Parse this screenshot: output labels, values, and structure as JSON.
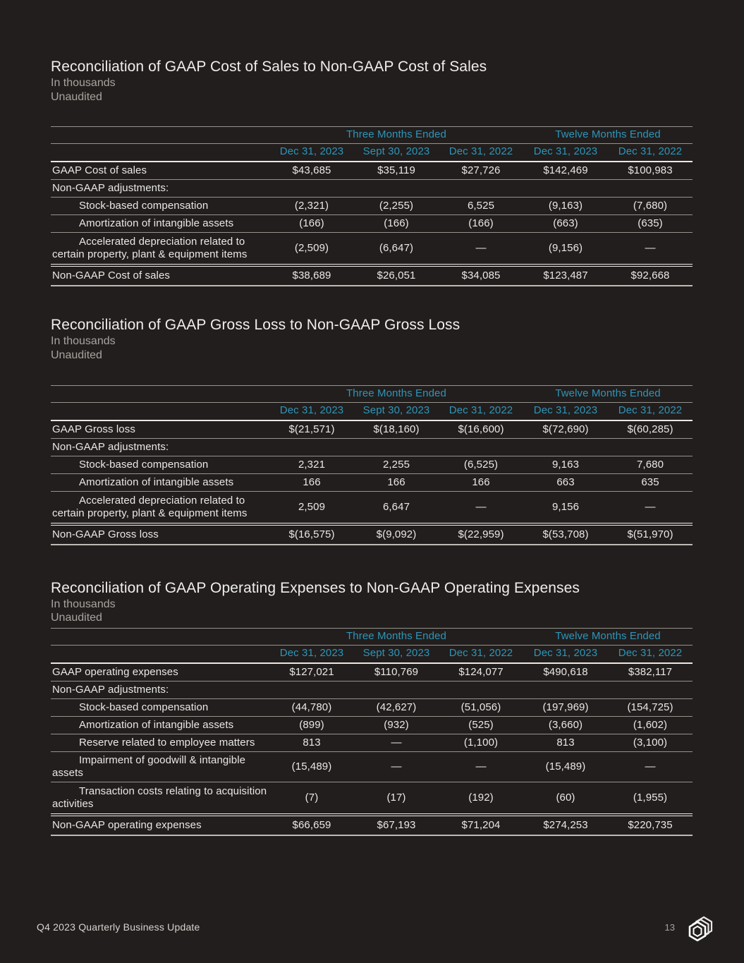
{
  "page": {
    "background_color": "#211e1d",
    "accent_color": "#2e95b9",
    "text_color": "#eae8e5"
  },
  "sections": [
    {
      "title": "Reconciliation of GAAP Cost of Sales to Non-GAAP Cost of Sales",
      "subtitle_units": "In thousands",
      "subtitle_audit": "Unaudited",
      "table": {
        "column_groups": [
          {
            "label": "Three Months Ended",
            "span": 3
          },
          {
            "label": "Twelve Months Ended",
            "span": 2
          }
        ],
        "columns": [
          "Dec 31, 2023",
          "Sept 30, 2023",
          "Dec 31, 2022",
          "Dec 31, 2023",
          "Dec 31, 2022"
        ],
        "rows": [
          {
            "label": "GAAP Cost of sales",
            "type": "data",
            "indent": false,
            "values": [
              "$43,685",
              "$35,119",
              "$27,726",
              "$142,469",
              "$100,983"
            ]
          },
          {
            "label": "Non-GAAP adjustments:",
            "type": "section",
            "indent": false,
            "values": []
          },
          {
            "label": "Stock-based compensation",
            "type": "data",
            "indent": true,
            "values": [
              "(2,321)",
              "(2,255)",
              "6,525",
              "(9,163)",
              "(7,680)"
            ]
          },
          {
            "label": "Amortization of intangible assets",
            "type": "data",
            "indent": true,
            "values": [
              "(166)",
              "(166)",
              "(166)",
              "(663)",
              "(635)"
            ]
          },
          {
            "label": "Accelerated depreciation related to certain property, plant & equipment items",
            "type": "data",
            "indent": true,
            "values": [
              "(2,509)",
              "(6,647)",
              "—",
              "(9,156)",
              "—"
            ]
          },
          {
            "label": "Non-GAAP Cost of sales",
            "type": "total",
            "indent": false,
            "values": [
              "$38,689",
              "$26,051",
              "$34,085",
              "$123,487",
              "$92,668"
            ]
          }
        ]
      }
    },
    {
      "title": "Reconciliation of GAAP Gross Loss to Non-GAAP Gross Loss",
      "subtitle_units": "In thousands",
      "subtitle_audit": "Unaudited",
      "table": {
        "column_groups": [
          {
            "label": "Three Months Ended",
            "span": 3
          },
          {
            "label": "Twelve Months Ended",
            "span": 2
          }
        ],
        "columns": [
          "Dec 31, 2023",
          "Sept 30, 2023",
          "Dec 31, 2022",
          "Dec 31, 2023",
          "Dec 31, 2022"
        ],
        "rows": [
          {
            "label": "GAAP Gross loss",
            "type": "data",
            "indent": false,
            "values": [
              "$(21,571)",
              "$(18,160)",
              "$(16,600)",
              "$(72,690)",
              "$(60,285)"
            ]
          },
          {
            "label": "Non-GAAP adjustments:",
            "type": "section",
            "indent": false,
            "values": []
          },
          {
            "label": "Stock-based compensation",
            "type": "data",
            "indent": true,
            "values": [
              "2,321",
              "2,255",
              "(6,525)",
              "9,163",
              "7,680"
            ]
          },
          {
            "label": "Amortization of intangible assets",
            "type": "data",
            "indent": true,
            "values": [
              "166",
              "166",
              "166",
              "663",
              "635"
            ]
          },
          {
            "label": "Accelerated depreciation related to certain property, plant & equipment items",
            "type": "data",
            "indent": true,
            "values": [
              "2,509",
              "6,647",
              "—",
              "9,156",
              "—"
            ]
          },
          {
            "label": "Non-GAAP Gross loss",
            "type": "total",
            "indent": false,
            "values": [
              "$(16,575)",
              "$(9,092)",
              "$(22,959)",
              "$(53,708)",
              "$(51,970)"
            ]
          }
        ]
      }
    },
    {
      "title": "Reconciliation of GAAP Operating Expenses to Non-GAAP Operating Expenses",
      "subtitle_units": "In thousands",
      "subtitle_audit": "Unaudited",
      "table": {
        "column_groups": [
          {
            "label": "Three Months Ended",
            "span": 3
          },
          {
            "label": "Twelve Months Ended",
            "span": 2
          }
        ],
        "columns": [
          "Dec 31, 2023",
          "Sept 30, 2023",
          "Dec 31, 2022",
          "Dec 31, 2023",
          "Dec 31, 2022"
        ],
        "rows": [
          {
            "label": "GAAP operating expenses",
            "type": "data",
            "indent": false,
            "values": [
              "$127,021",
              "$110,769",
              "$124,077",
              "$490,618",
              "$382,117"
            ]
          },
          {
            "label": "Non-GAAP adjustments:",
            "type": "section",
            "indent": false,
            "values": []
          },
          {
            "label": "Stock-based compensation",
            "type": "data",
            "indent": true,
            "values": [
              "(44,780)",
              "(42,627)",
              "(51,056)",
              "(197,969)",
              "(154,725)"
            ]
          },
          {
            "label": "Amortization of intangible assets",
            "type": "data",
            "indent": true,
            "values": [
              "(899)",
              "(932)",
              "(525)",
              "(3,660)",
              "(1,602)"
            ]
          },
          {
            "label": "Reserve related to employee matters",
            "type": "data",
            "indent": true,
            "values": [
              "813",
              "—",
              "(1,100)",
              "813",
              "(3,100)"
            ]
          },
          {
            "label": "Impairment of goodwill & intangible assets",
            "type": "data",
            "indent": true,
            "values": [
              "(15,489)",
              "—",
              "—",
              "(15,489)",
              "—"
            ]
          },
          {
            "label": "Transaction costs relating to acquisition activities",
            "type": "data",
            "indent": true,
            "values": [
              "(7)",
              "(17)",
              "(192)",
              "(60)",
              "(1,955)"
            ]
          },
          {
            "label": "Non-GAAP operating expenses",
            "type": "total",
            "indent": false,
            "values": [
              "$66,659",
              "$67,193",
              "$71,204",
              "$274,253",
              "$220,735"
            ]
          }
        ]
      }
    }
  ],
  "footer": {
    "label": "Q4 2023 Quarterly Business Update",
    "page_number": "13",
    "logo": "stacked-hexagons-logo"
  }
}
